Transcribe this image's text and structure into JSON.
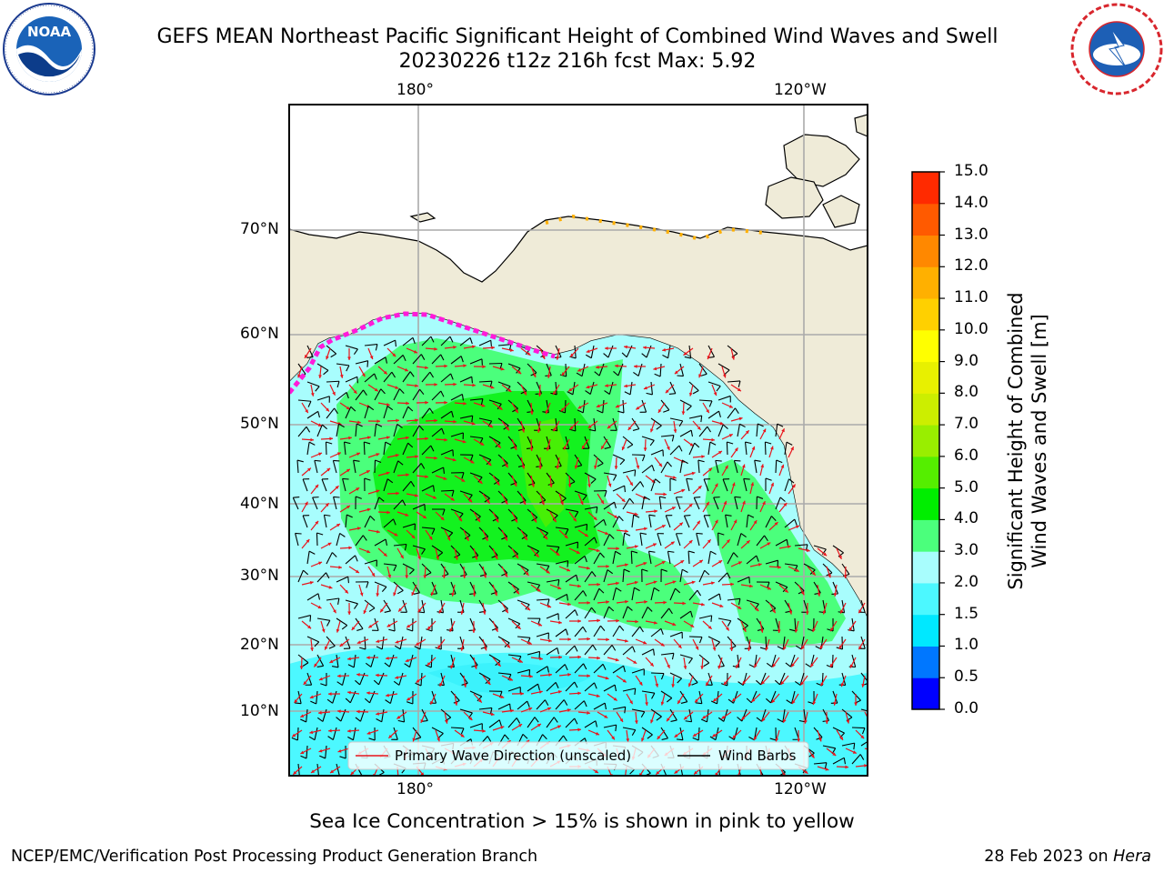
{
  "header": {
    "title_line1": "GEFS MEAN Northeast Pacific Significant Height of Combined Wind Waves and Swell",
    "title_line2": "20230226 t12z 216h fcst   Max: 5.92"
  },
  "logos": {
    "left": {
      "name": "NOAA",
      "ring_text": "NATIONAL OCEANIC AND ATMOSPHERIC ADMINISTRATION",
      "bottom_text": "U.S. DEPARTMENT OF COMMERCE"
    },
    "right": {
      "name": "NATIONAL WEATHER SERVICE"
    }
  },
  "map": {
    "lon_labels_top": [
      "180°",
      "120°W"
    ],
    "lon_labels_bottom": [
      "180°",
      "120°W"
    ],
    "lat_labels": [
      "70°N",
      "60°N",
      "50°N",
      "40°N",
      "30°N",
      "20°N",
      "10°N"
    ],
    "legend": {
      "wave_direction": "Primary Wave Direction (unscaled)",
      "wind_barbs": "Wind Barbs"
    },
    "colors": {
      "land": "#efebd8",
      "wave_arrow": "#e8141b",
      "barb": "#000000"
    }
  },
  "colorbar": {
    "label_line1": "Significant Height of Combined",
    "label_line2": "Wind Waves and Swell [m]",
    "ticks": [
      "15.0",
      "14.0",
      "13.0",
      "12.0",
      "11.0",
      "10.0",
      "9.0",
      "8.0",
      "7.0",
      "6.0",
      "5.0",
      "4.0",
      "3.0",
      "2.0",
      "1.5",
      "1.0",
      "0.5",
      "0.0"
    ],
    "colors_bottom_to_top": [
      "#0000ff",
      "#0077ff",
      "#00e8ff",
      "#4cf8ff",
      "#a8fdfd",
      "#4bff7c",
      "#00ee00",
      "#55ee00",
      "#99ee00",
      "#ccee00",
      "#e8f000",
      "#ffff00",
      "#ffd000",
      "#ffb000",
      "#ff8800",
      "#ff5a00",
      "#ff2a00"
    ]
  },
  "caption": "Sea Ice Concentration > 15% is shown in pink to yellow",
  "footer": {
    "left": "NCEP/EMC/Verification Post Processing Product Generation Branch",
    "date": "28 Feb 2023 on",
    "machine": "Hera"
  }
}
